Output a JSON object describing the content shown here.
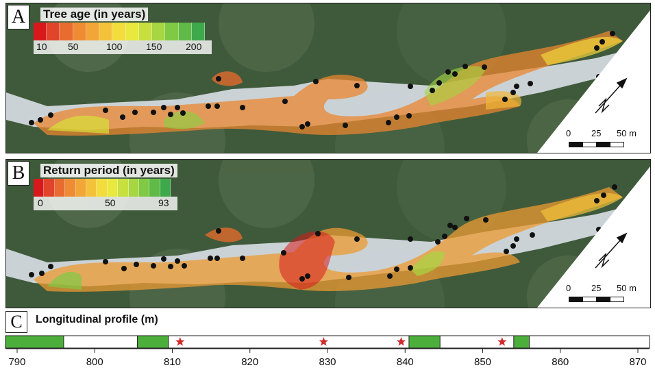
{
  "panel_a": {
    "letter": "A",
    "legend_title": "Tree age (in years)",
    "legend_ticks": [
      "10",
      "50",
      "100",
      "150",
      "200"
    ],
    "legend_colors": [
      "#d7191c",
      "#e0442a",
      "#e86b2f",
      "#ef8c33",
      "#f2a637",
      "#f4c23a",
      "#f2dd3c",
      "#e8e83e",
      "#c8e03f",
      "#a6d641",
      "#7fc944",
      "#5fba47",
      "#3ea94a"
    ]
  },
  "panel_b": {
    "letter": "B",
    "legend_title": "Return period (in years)",
    "legend_ticks": [
      "0",
      "50",
      "93"
    ],
    "legend_colors": [
      "#d7191c",
      "#e0442a",
      "#e86b2f",
      "#ef8c33",
      "#f2a637",
      "#f4c23a",
      "#f2dd3c",
      "#e8e83e",
      "#c8e03f",
      "#a6d641",
      "#7fc944",
      "#5fba47",
      "#3ea94a"
    ]
  },
  "scalebar": {
    "labels": [
      "0",
      "25",
      "50 m"
    ]
  },
  "panel_c": {
    "letter": "C",
    "title": "Longitudinal profile (m)",
    "axis_ticks": [
      "790",
      "800",
      "810",
      "820",
      "830",
      "840",
      "850",
      "860",
      "870"
    ],
    "axis_min": 788.5,
    "axis_max": 871.5,
    "green_segments": [
      [
        788.5,
        796
      ],
      [
        805.5,
        809.5
      ],
      [
        840.5,
        844.5
      ],
      [
        854,
        856
      ]
    ],
    "stars": [
      811,
      829.5,
      839.5,
      852.5
    ],
    "colors": {
      "segment": "#4caf3c",
      "star": "#d22b2b"
    }
  }
}
